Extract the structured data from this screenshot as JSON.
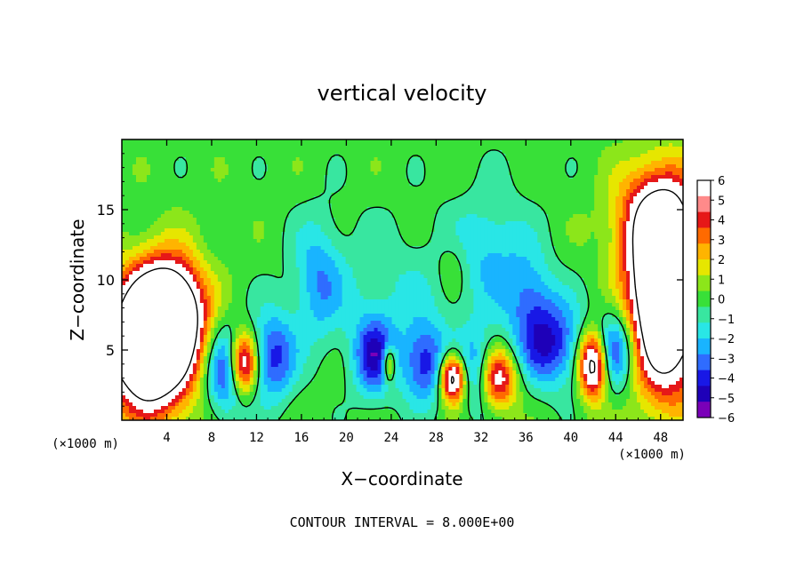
{
  "chart_data": {
    "type": "heatmap",
    "title": "vertical velocity",
    "xlabel": "X−coordinate",
    "ylabel": "Z−coordinate",
    "x_unit_left": "(×1000 m)",
    "x_unit_right": "(×1000 m)",
    "xlim": [
      0,
      50
    ],
    "ylim": [
      0,
      20
    ],
    "x_ticks": [
      4,
      8,
      12,
      16,
      20,
      24,
      28,
      32,
      36,
      40,
      44,
      48
    ],
    "y_ticks": [
      5,
      10,
      15
    ],
    "colorbar": {
      "ticks": [
        6,
        5,
        4,
        3,
        2,
        1,
        0,
        -1,
        -2,
        -3,
        -4,
        -5,
        -6
      ],
      "tick_labels": [
        "6",
        "5",
        "4",
        "3",
        "2",
        "1",
        "0",
        "−1",
        "−2",
        "−3",
        "−4",
        "−5",
        "−6"
      ],
      "range": [
        -6,
        6
      ],
      "colors": [
        "#7a00b8",
        "#1e00b8",
        "#1818e6",
        "#2f6cff",
        "#19b4ff",
        "#29e6e6",
        "#38e6a0",
        "#38e038",
        "#8ce61a",
        "#e6e600",
        "#ffb400",
        "#ff6a00",
        "#e61818",
        "#ff8a8a",
        "#ffffff"
      ],
      "saturated_color": "#ffffff"
    },
    "features": [
      {
        "kind": "up",
        "x": 2.5,
        "z": 5.5,
        "sx": 2.6,
        "sz": 3.2,
        "amp": 16
      },
      {
        "kind": "up",
        "x": 4.5,
        "z": 8.0,
        "sx": 2.0,
        "sz": 2.5,
        "amp": 8
      },
      {
        "kind": "up",
        "x": 48.5,
        "z": 9.0,
        "sx": 2.2,
        "sz": 4.5,
        "amp": 16
      },
      {
        "kind": "up",
        "x": 47.5,
        "z": 14.5,
        "sx": 2.5,
        "sz": 2.5,
        "amp": 5
      },
      {
        "kind": "up",
        "x": 10.8,
        "z": 4.0,
        "sx": 0.9,
        "sz": 1.6,
        "amp": 10
      },
      {
        "kind": "up",
        "x": 29.5,
        "z": 3.0,
        "sx": 0.8,
        "sz": 1.2,
        "amp": 10
      },
      {
        "kind": "up",
        "x": 33.5,
        "z": 3.0,
        "sx": 1.2,
        "sz": 1.5,
        "amp": 7
      },
      {
        "kind": "up",
        "x": 42.0,
        "z": 4.0,
        "sx": 0.9,
        "sz": 1.7,
        "amp": 10
      },
      {
        "kind": "up",
        "x": 23.8,
        "z": 4.0,
        "sx": 0.4,
        "sz": 0.9,
        "amp": 6
      },
      {
        "kind": "up",
        "x": 29.5,
        "z": 11.0,
        "sx": 1.0,
        "sz": 1.5,
        "amp": 1.5
      },
      {
        "kind": "down",
        "x": 9.5,
        "z": 3.5,
        "sx": 1.4,
        "sz": 2.2,
        "amp": 6
      },
      {
        "kind": "down",
        "x": 13.5,
        "z": 4.5,
        "sx": 1.4,
        "sz": 2.2,
        "amp": 5
      },
      {
        "kind": "down",
        "x": 22.5,
        "z": 4.5,
        "sx": 1.3,
        "sz": 2.0,
        "amp": 5.5
      },
      {
        "kind": "down",
        "x": 27.0,
        "z": 4.0,
        "sx": 1.4,
        "sz": 2.0,
        "amp": 5
      },
      {
        "kind": "down",
        "x": 31.5,
        "z": 3.5,
        "sx": 1.2,
        "sz": 2.0,
        "amp": 4
      },
      {
        "kind": "down",
        "x": 38.0,
        "z": 5.5,
        "sx": 2.2,
        "sz": 2.2,
        "amp": 5.5
      },
      {
        "kind": "down",
        "x": 44.0,
        "z": 5.0,
        "sx": 1.3,
        "sz": 2.0,
        "amp": 5.5
      },
      {
        "kind": "down",
        "x": 17.5,
        "z": 10.0,
        "sx": 1.5,
        "sz": 3.0,
        "amp": 3
      },
      {
        "kind": "down",
        "x": 33.0,
        "z": 12.0,
        "sx": 2.5,
        "sz": 3.0,
        "amp": 2.5
      },
      {
        "kind": "down",
        "x": 24.0,
        "z": 9.0,
        "sx": 5.0,
        "sz": 3.5,
        "amp": 1.5
      },
      {
        "kind": "down",
        "x": 36.5,
        "z": 9.0,
        "sx": 1.5,
        "sz": 2.0,
        "amp": 2.5
      }
    ],
    "contour_interval_label": "CONTOUR INTERVAL = 8.000E+00"
  }
}
